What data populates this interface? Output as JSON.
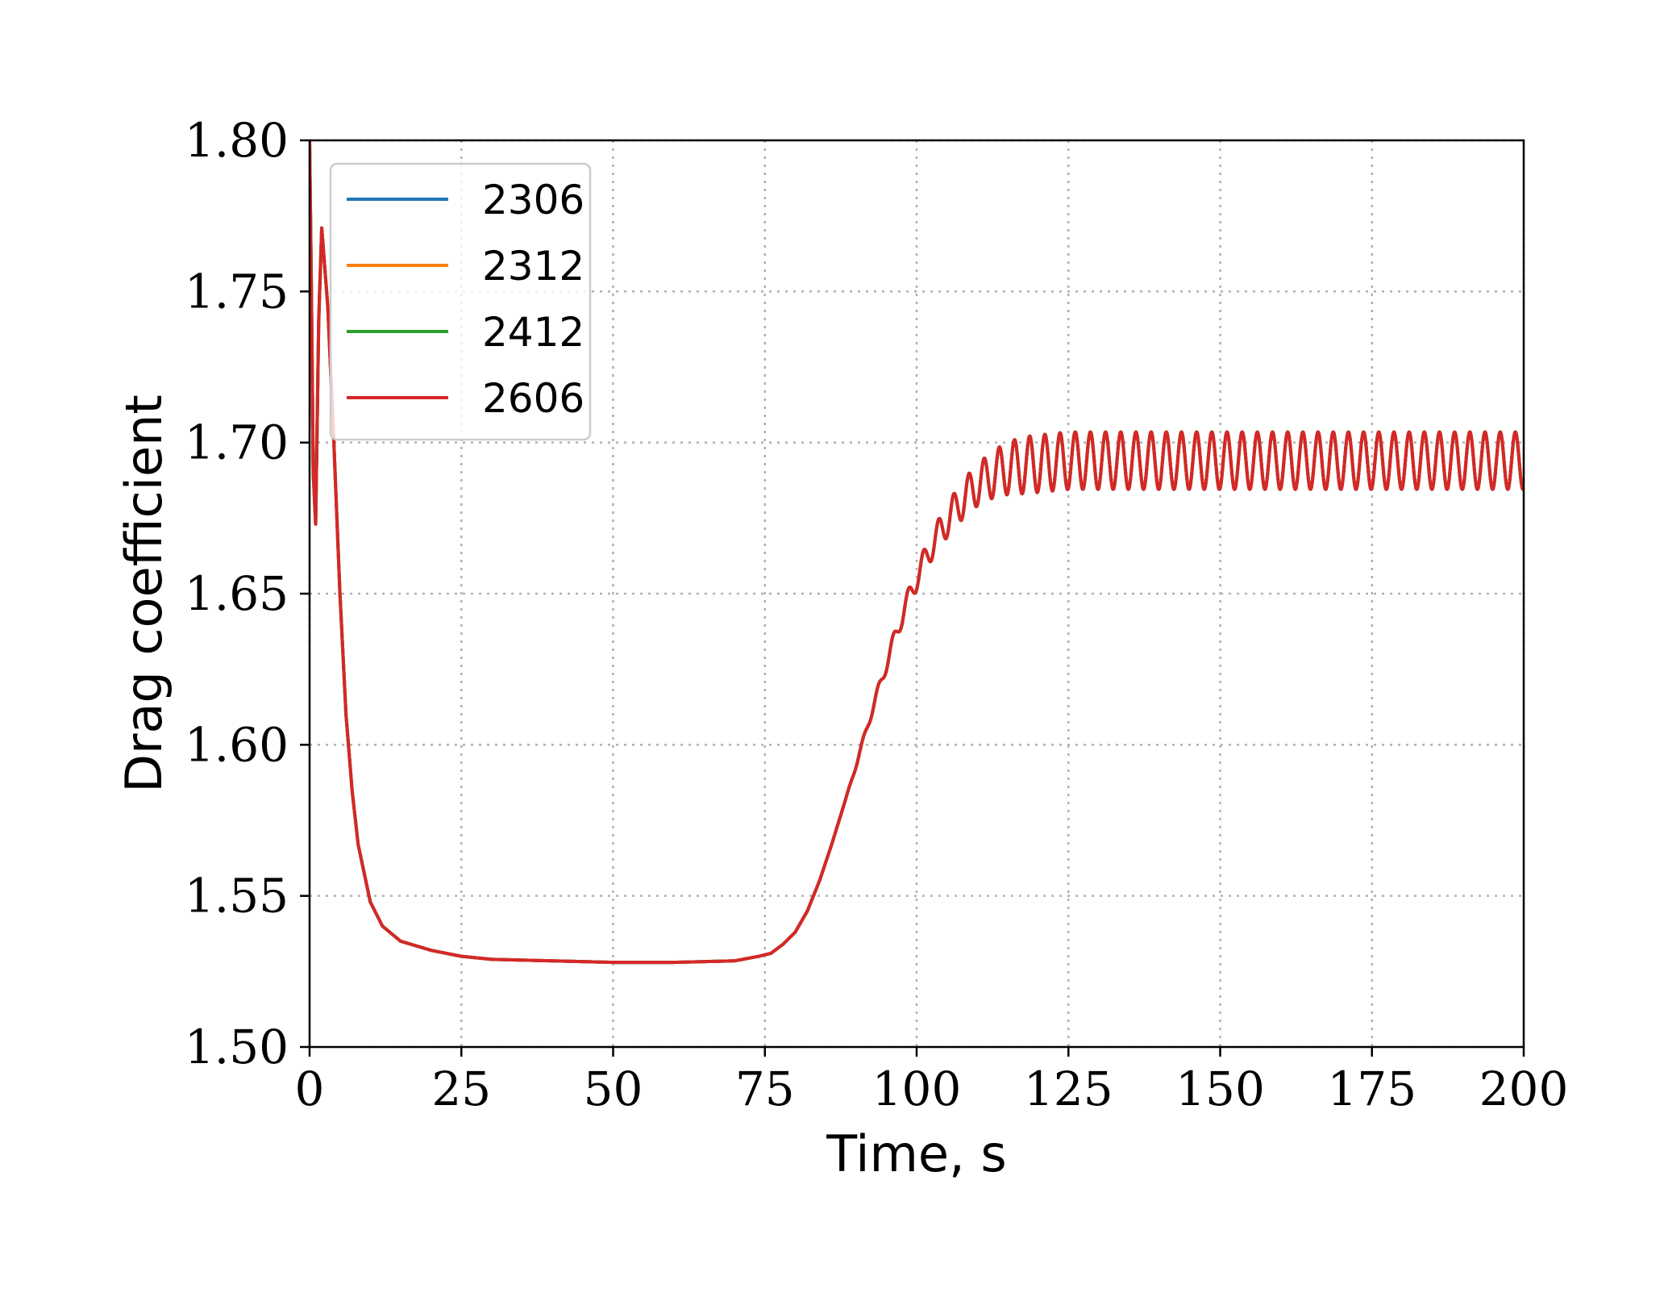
{
  "chart_data": {
    "type": "line",
    "title": "",
    "xlabel": "Time, s",
    "ylabel": "Drag coefficient",
    "xlim": [
      0,
      200
    ],
    "ylim": [
      1.5,
      1.8
    ],
    "x_ticks": [
      0,
      25,
      50,
      75,
      100,
      125,
      150,
      175,
      200
    ],
    "x_tick_labels": [
      "0",
      "25",
      "50",
      "75",
      "100",
      "125",
      "150",
      "175",
      "200"
    ],
    "y_ticks": [
      1.5,
      1.55,
      1.6,
      1.65,
      1.7,
      1.75,
      1.8
    ],
    "y_tick_labels": [
      "1.50",
      "1.55",
      "1.60",
      "1.65",
      "1.70",
      "1.75",
      "1.80"
    ],
    "grid": true,
    "legend_position": "top-left",
    "x": [
      0,
      0.3,
      0.6,
      1.0,
      1.5,
      2.0,
      3.0,
      4.0,
      5.0,
      6.0,
      7.0,
      8.0,
      10.0,
      12.0,
      15.0,
      20.0,
      25.0,
      30.0,
      40.0,
      50.0,
      60.0,
      70.0,
      74.0,
      76.0,
      78.0,
      80.0,
      82.0,
      84.0,
      86.0,
      88.0,
      90.0,
      92.0,
      94.0,
      96.0,
      98.0,
      100.0,
      102.0,
      104.0,
      106.0,
      108.0,
      110.0,
      113.0,
      116.0,
      120.0,
      125.0,
      130.0,
      140.0,
      150.0,
      160.0,
      170.0,
      180.0,
      190.0,
      200.0
    ],
    "series": [
      {
        "name": "2306",
        "color": "#1f77b4",
        "values": [
          1.8,
          1.75,
          1.69,
          1.673,
          1.74,
          1.771,
          1.745,
          1.7,
          1.65,
          1.61,
          1.585,
          1.567,
          1.548,
          1.54,
          1.535,
          1.532,
          1.53,
          1.529,
          1.5285,
          1.528,
          1.528,
          1.5285,
          1.53,
          1.531,
          1.534,
          1.538,
          1.545,
          1.555,
          1.567,
          1.58,
          1.593,
          1.607,
          1.62,
          1.633,
          1.645,
          1.655,
          1.664,
          1.671,
          1.677,
          1.682,
          1.686,
          1.69,
          1.692,
          1.693,
          1.694,
          1.694,
          1.694,
          1.694,
          1.694,
          1.694,
          1.694,
          1.694,
          1.694
        ]
      },
      {
        "name": "2312",
        "color": "#ff7f0e",
        "values": [
          1.8,
          1.75,
          1.69,
          1.673,
          1.74,
          1.771,
          1.745,
          1.7,
          1.65,
          1.61,
          1.585,
          1.567,
          1.548,
          1.54,
          1.535,
          1.532,
          1.53,
          1.529,
          1.5285,
          1.528,
          1.528,
          1.5285,
          1.53,
          1.531,
          1.534,
          1.538,
          1.545,
          1.555,
          1.567,
          1.58,
          1.593,
          1.607,
          1.62,
          1.633,
          1.645,
          1.655,
          1.664,
          1.671,
          1.677,
          1.682,
          1.686,
          1.69,
          1.692,
          1.693,
          1.694,
          1.694,
          1.694,
          1.694,
          1.694,
          1.694,
          1.694,
          1.694,
          1.694
        ]
      },
      {
        "name": "2412",
        "color": "#2ca02c",
        "values": [
          1.8,
          1.75,
          1.69,
          1.673,
          1.74,
          1.771,
          1.745,
          1.7,
          1.65,
          1.61,
          1.585,
          1.567,
          1.548,
          1.54,
          1.535,
          1.532,
          1.53,
          1.529,
          1.5285,
          1.528,
          1.528,
          1.5285,
          1.53,
          1.531,
          1.534,
          1.538,
          1.545,
          1.555,
          1.567,
          1.58,
          1.593,
          1.607,
          1.62,
          1.633,
          1.645,
          1.655,
          1.664,
          1.671,
          1.677,
          1.682,
          1.686,
          1.69,
          1.692,
          1.693,
          1.694,
          1.694,
          1.694,
          1.694,
          1.694,
          1.694,
          1.694,
          1.694,
          1.694
        ]
      },
      {
        "name": "2606",
        "color": "#d62728",
        "values": [
          1.8,
          1.75,
          1.69,
          1.673,
          1.74,
          1.771,
          1.745,
          1.7,
          1.65,
          1.61,
          1.585,
          1.567,
          1.548,
          1.54,
          1.535,
          1.532,
          1.53,
          1.529,
          1.5285,
          1.528,
          1.528,
          1.5285,
          1.53,
          1.531,
          1.534,
          1.538,
          1.545,
          1.555,
          1.567,
          1.58,
          1.593,
          1.607,
          1.62,
          1.633,
          1.645,
          1.655,
          1.664,
          1.671,
          1.677,
          1.682,
          1.686,
          1.69,
          1.692,
          1.693,
          1.694,
          1.694,
          1.694,
          1.694,
          1.694,
          1.694,
          1.694,
          1.694,
          1.694
        ]
      }
    ],
    "oscillation": {
      "start_x": 88,
      "period": 2.5,
      "amplitude": 0.0095
    }
  }
}
